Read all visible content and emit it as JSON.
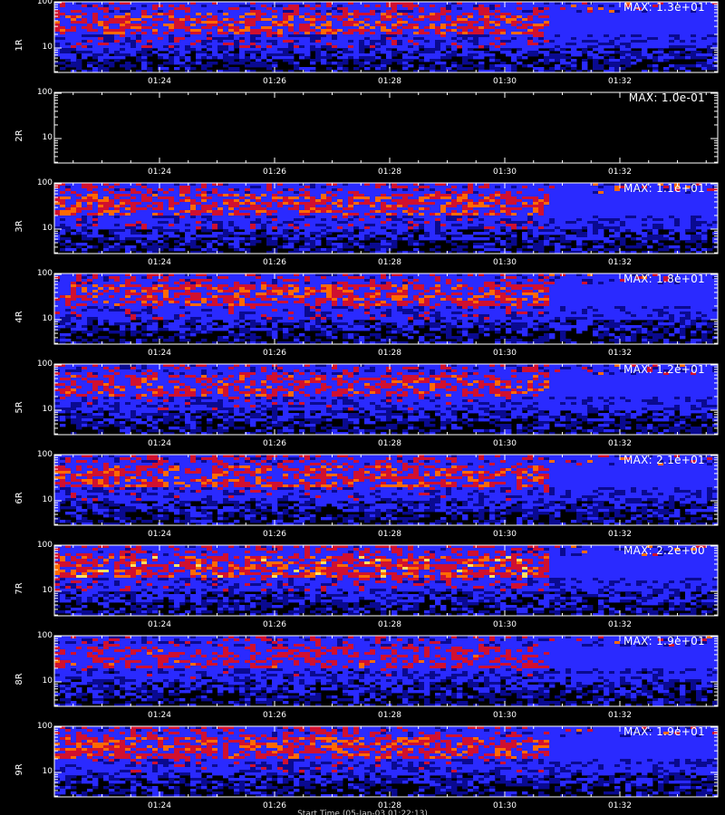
{
  "chart_data": {
    "type": "heatmap",
    "x_ticks": [
      "01:24",
      "01:26",
      "01:28",
      "01:30",
      "01:32"
    ],
    "y_ticks": [
      "100",
      "10"
    ],
    "yscale": "log",
    "colormap": [
      "#000000",
      "#0a0a90",
      "#2a2aff",
      "#d01030",
      "#ff6a00",
      "#ffe060"
    ],
    "panels": [
      {
        "ylabel": "1R",
        "max_label": "MAX: 1.3e+01",
        "max": 13,
        "intensity": 0.85
      },
      {
        "ylabel": "2R",
        "max_label": "MAX: 1.0e-01",
        "max": 0.1,
        "intensity": 0.0
      },
      {
        "ylabel": "3R",
        "max_label": "MAX: 1.1e+01",
        "max": 11,
        "intensity": 0.85
      },
      {
        "ylabel": "4R",
        "max_label": "MAX: 1.8e+01",
        "max": 18,
        "intensity": 0.85
      },
      {
        "ylabel": "5R",
        "max_label": "MAX: 1.2e+01",
        "max": 12,
        "intensity": 0.8
      },
      {
        "ylabel": "6R",
        "max_label": "MAX: 2.1e+01",
        "max": 21,
        "intensity": 0.85
      },
      {
        "ylabel": "7R",
        "max_label": "MAX: 2.2e+00",
        "max": 2.2,
        "intensity": 0.9
      },
      {
        "ylabel": "8R",
        "max_label": "MAX: 1.9e+01",
        "max": 19,
        "intensity": 0.75
      },
      {
        "ylabel": "9R",
        "max_label": "MAX: 1.9e+01",
        "max": 19,
        "intensity": 0.85
      }
    ],
    "footer": "Start Time (05-Jan-03 01:22:13)"
  }
}
